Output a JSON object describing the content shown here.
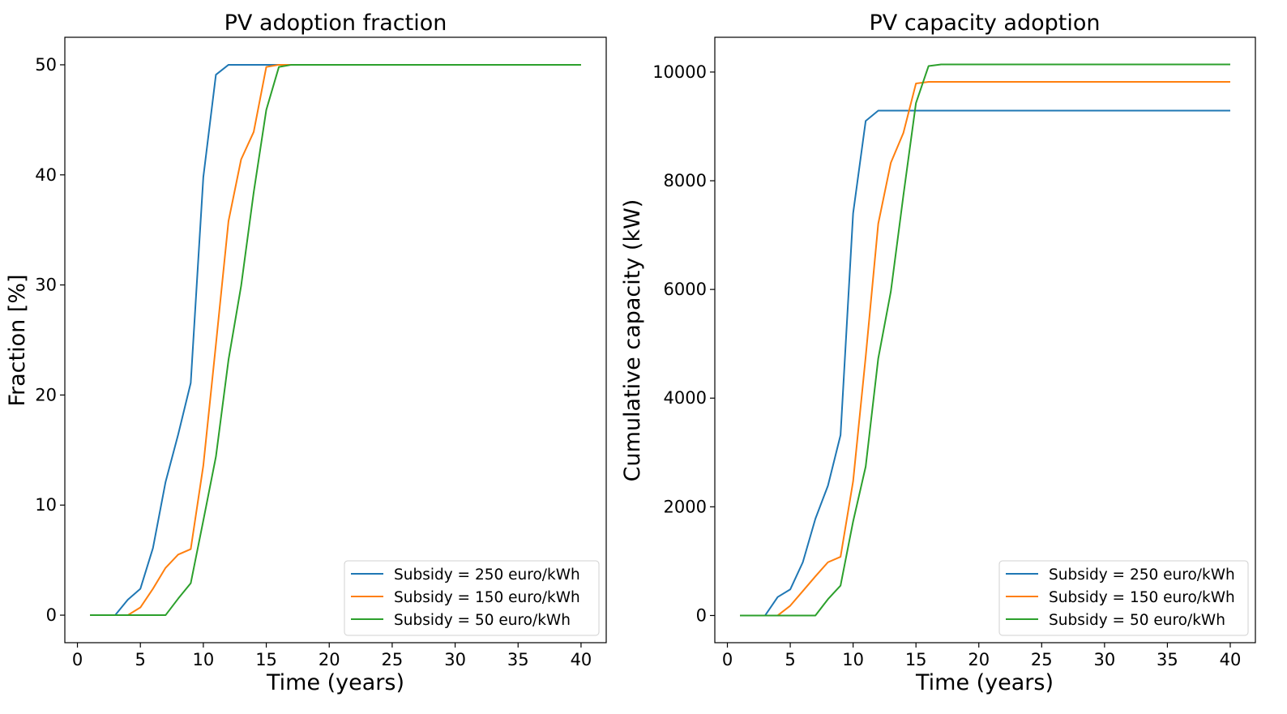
{
  "chart_data": [
    {
      "type": "line",
      "title": "PV adoption fraction",
      "xlabel": "Time (years)",
      "ylabel": "Fraction [%]",
      "xlim": [
        -1,
        42
      ],
      "ylim": [
        -2.5,
        52.5
      ],
      "xticks": [
        0,
        5,
        10,
        15,
        20,
        25,
        30,
        35,
        40
      ],
      "yticks": [
        0,
        10,
        20,
        30,
        40,
        50
      ],
      "legend_loc": "lower-right",
      "x": [
        1,
        2,
        3,
        4,
        5,
        6,
        7,
        8,
        9,
        10,
        11,
        12,
        13,
        14,
        15,
        16,
        17,
        18,
        19,
        20,
        21,
        22,
        23,
        24,
        25,
        26,
        27,
        28,
        29,
        30,
        31,
        32,
        33,
        34,
        35,
        36,
        37,
        38,
        39,
        40
      ],
      "series": [
        {
          "name": "Subsidy = 250 euro/kWh",
          "color": "#1f77b4",
          "values": [
            0,
            0,
            0,
            1.4,
            2.4,
            6.1,
            12.1,
            16.4,
            21.1,
            39.8,
            49.1,
            50,
            50,
            50,
            50,
            50,
            50,
            50,
            50,
            50,
            50,
            50,
            50,
            50,
            50,
            50,
            50,
            50,
            50,
            50,
            50,
            50,
            50,
            50,
            50,
            50,
            50,
            50,
            50,
            50
          ]
        },
        {
          "name": "Subsidy = 150 euro/kWh",
          "color": "#ff7f0e",
          "values": [
            0,
            0,
            0,
            0,
            0.7,
            2.4,
            4.3,
            5.5,
            6,
            13.6,
            24.6,
            35.8,
            41.4,
            43.9,
            49.8,
            50,
            50,
            50,
            50,
            50,
            50,
            50,
            50,
            50,
            50,
            50,
            50,
            50,
            50,
            50,
            50,
            50,
            50,
            50,
            50,
            50,
            50,
            50,
            50,
            50
          ]
        },
        {
          "name": "Subsidy = 50 euro/kWh",
          "color": "#2ca02c",
          "values": [
            0,
            0,
            0,
            0,
            0,
            0,
            0,
            1.5,
            2.9,
            8.6,
            14.4,
            23.2,
            29.9,
            38.4,
            45.9,
            49.8,
            50,
            50,
            50,
            50,
            50,
            50,
            50,
            50,
            50,
            50,
            50,
            50,
            50,
            50,
            50,
            50,
            50,
            50,
            50,
            50,
            50,
            50,
            50,
            50
          ]
        }
      ]
    },
    {
      "type": "line",
      "title": "PV capacity adoption",
      "xlabel": "Time (years)",
      "ylabel": "Cumulative capacity (kW)",
      "xlim": [
        -1,
        42
      ],
      "ylim": [
        -500,
        10640
      ],
      "xticks": [
        0,
        5,
        10,
        15,
        20,
        25,
        30,
        35,
        40
      ],
      "yticks": [
        0,
        2000,
        4000,
        6000,
        8000,
        10000
      ],
      "legend_loc": "lower-right",
      "x": [
        1,
        2,
        3,
        4,
        5,
        6,
        7,
        8,
        9,
        10,
        11,
        12,
        13,
        14,
        15,
        16,
        17,
        18,
        19,
        20,
        21,
        22,
        23,
        24,
        25,
        26,
        27,
        28,
        29,
        30,
        31,
        32,
        33,
        34,
        35,
        36,
        37,
        38,
        39,
        40
      ],
      "series": [
        {
          "name": "Subsidy = 250 euro/kWh",
          "color": "#1f77b4",
          "values": [
            0,
            0,
            0,
            340,
            480,
            980,
            1780,
            2390,
            3320,
            7400,
            9100,
            9290,
            9290,
            9290,
            9290,
            9290,
            9290,
            9290,
            9290,
            9290,
            9290,
            9290,
            9290,
            9290,
            9290,
            9290,
            9290,
            9290,
            9290,
            9290,
            9290,
            9290,
            9290,
            9290,
            9290,
            9290,
            9290,
            9290,
            9290,
            9290
          ]
        },
        {
          "name": "Subsidy = 150 euro/kWh",
          "color": "#ff7f0e",
          "values": [
            0,
            0,
            0,
            0,
            180,
            450,
            720,
            980,
            1080,
            2470,
            4760,
            7210,
            8330,
            8880,
            9790,
            9820,
            9820,
            9820,
            9820,
            9820,
            9820,
            9820,
            9820,
            9820,
            9820,
            9820,
            9820,
            9820,
            9820,
            9820,
            9820,
            9820,
            9820,
            9820,
            9820,
            9820,
            9820,
            9820,
            9820,
            9820
          ]
        },
        {
          "name": "Subsidy = 50 euro/kWh",
          "color": "#2ca02c",
          "values": [
            0,
            0,
            0,
            0,
            0,
            0,
            0,
            300,
            550,
            1730,
            2740,
            4730,
            5960,
            7730,
            9430,
            10110,
            10140,
            10140,
            10140,
            10140,
            10140,
            10140,
            10140,
            10140,
            10140,
            10140,
            10140,
            10140,
            10140,
            10140,
            10140,
            10140,
            10140,
            10140,
            10140,
            10140,
            10140,
            10140,
            10140,
            10140
          ]
        }
      ]
    }
  ]
}
